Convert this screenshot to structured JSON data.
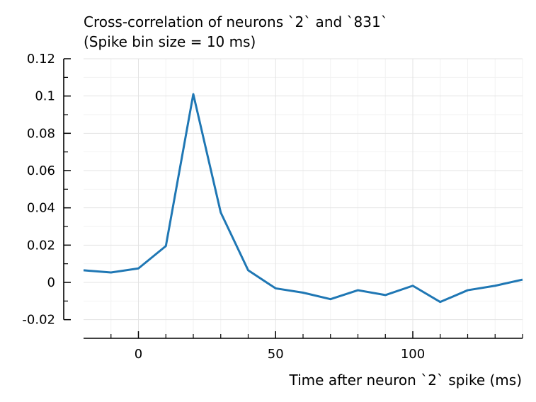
{
  "chart_data": {
    "type": "line",
    "title": "Cross-correlation of neurons `2` and `831`",
    "subtitle": "(Spike bin size = 10 ms)",
    "xlabel": "Time after neuron `2` spike (ms)",
    "ylabel": "",
    "xlim": [
      -20,
      140
    ],
    "ylim": [
      -0.03,
      0.12
    ],
    "x_ticks": [
      0,
      50,
      100
    ],
    "x_tick_labels": [
      "0",
      "50",
      "100"
    ],
    "y_ticks": [
      -0.02,
      0,
      0.02,
      0.04,
      0.06,
      0.08,
      0.1,
      0.12
    ],
    "y_tick_labels": [
      "-0.02",
      "0",
      "0.02",
      "0.04",
      "0.06",
      "0.08",
      "0.1",
      "0.12"
    ],
    "grid": true,
    "legend": "none",
    "series": [
      {
        "color": "#1f77b4",
        "x": [
          -20,
          -10,
          0,
          10,
          20,
          30,
          40,
          50,
          60,
          70,
          80,
          90,
          100,
          110,
          120,
          130,
          140
        ],
        "y": [
          0.0065,
          0.0053,
          0.0075,
          0.0195,
          0.101,
          0.0375,
          0.0065,
          -0.0032,
          -0.0055,
          -0.009,
          -0.0042,
          -0.0068,
          -0.0018,
          -0.0105,
          -0.0042,
          -0.0018,
          0.0015
        ]
      }
    ]
  }
}
